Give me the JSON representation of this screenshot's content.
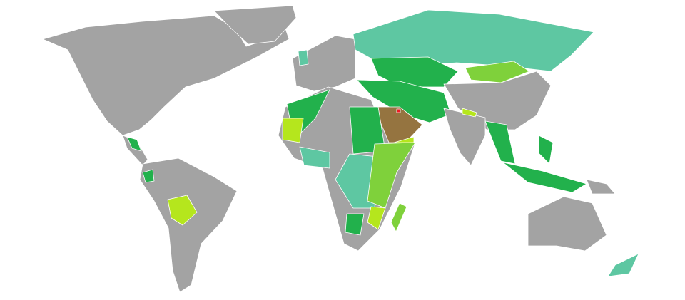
{
  "map": {
    "type": "choropleth world map",
    "colors": {
      "no_data": "#a3a3a3",
      "category_dark_green": "#22b14c",
      "category_light_green": "#7fd13b",
      "category_yellow_green": "#b5e61d",
      "category_teal": "#5ec7a2",
      "category_brown": "#957440",
      "category_red": "#ed1c24"
    }
  }
}
